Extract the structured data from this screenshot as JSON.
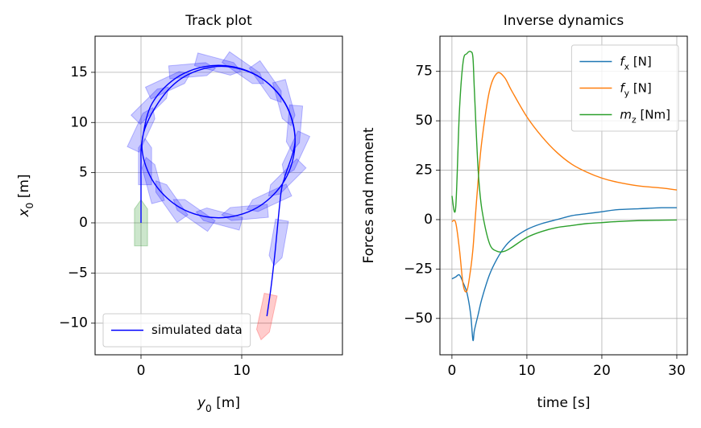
{
  "chart_data": [
    {
      "type": "line",
      "title": "Track plot",
      "xlabel": "y0 [m]",
      "ylabel": "x0 [m]",
      "xlim": [
        -4.56,
        20.0
      ],
      "ylim": [
        -13.15,
        18.6
      ],
      "xticks": [
        0,
        10
      ],
      "yticks": [
        {
          "value": -10,
          "label": "−10"
        },
        {
          "value": -5,
          "label": "−5"
        },
        0,
        5,
        10,
        15
      ],
      "grid": true,
      "legend": "lower left",
      "series": [
        {
          "name": "simulated data",
          "color": "#0000ff",
          "x": [
            0,
            0,
            0,
            0,
            0.1,
            1.1,
            3.9,
            7.7,
            11.5,
            14.3,
            15.3,
            14.3,
            11.5,
            7.7,
            3.9,
            1.1,
            0.1,
            1.7,
            4.35,
            8.0,
            11.65,
            14.3,
            15.3,
            14.3,
            13.9,
            13.3,
            12.9,
            12.5
          ],
          "values": [
            0,
            2,
            4,
            6,
            8.1,
            11.9,
            14.7,
            15.7,
            14.7,
            11.9,
            8.1,
            4.3,
            1.5,
            0.5,
            1.5,
            4.3,
            8.1,
            11.95,
            14.6,
            15.6,
            14.6,
            11.95,
            8.3,
            4.65,
            3.0,
            -3.0,
            -6.5,
            -9.3
          ]
        }
      ],
      "ship_length": 4.6,
      "ship_width": 1.3,
      "ship_outlines": [
        {
          "y0": 0,
          "x0": 0,
          "heading": 0,
          "color": "#008000"
        },
        {
          "y0": 0.4,
          "x0": 6.1,
          "heading": 0,
          "color": "#0000ff"
        },
        {
          "y0": 0.2,
          "x0": 9.4,
          "heading": 25,
          "color": "#0000ff"
        },
        {
          "y0": 1.1,
          "x0": 11.9,
          "heading": 45,
          "color": "#0000ff"
        },
        {
          "y0": 2.8,
          "x0": 13.9,
          "heading": 65,
          "color": "#0000ff"
        },
        {
          "y0": 5.1,
          "x0": 15.2,
          "heading": 85,
          "color": "#0000ff"
        },
        {
          "y0": 7.7,
          "x0": 15.7,
          "heading": 105,
          "color": "#0000ff"
        },
        {
          "y0": 10.3,
          "x0": 15.2,
          "heading": 125,
          "color": "#0000ff"
        },
        {
          "y0": 12.6,
          "x0": 13.9,
          "heading": 145,
          "color": "#0000ff"
        },
        {
          "y0": 14.3,
          "x0": 11.9,
          "heading": 165,
          "color": "#0000ff"
        },
        {
          "y0": 15.2,
          "x0": 9.4,
          "heading": 185,
          "color": "#0000ff"
        },
        {
          "y0": 15.2,
          "x0": 6.8,
          "heading": 205,
          "color": "#0000ff"
        },
        {
          "y0": 14.3,
          "x0": 4.3,
          "heading": 225,
          "color": "#0000ff"
        },
        {
          "y0": 12.6,
          "x0": 2.3,
          "heading": 245,
          "color": "#0000ff"
        },
        {
          "y0": 10.3,
          "x0": 1.0,
          "heading": 265,
          "color": "#0000ff"
        },
        {
          "y0": 7.7,
          "x0": 0.5,
          "heading": 285,
          "color": "#0000ff"
        },
        {
          "y0": 5.1,
          "x0": 1.0,
          "heading": 305,
          "color": "#0000ff"
        },
        {
          "y0": 2.8,
          "x0": 2.3,
          "heading": 325,
          "color": "#0000ff"
        },
        {
          "y0": 1.1,
          "x0": 4.3,
          "heading": 345,
          "color": "#0000ff"
        },
        {
          "y0": 13.6,
          "x0": -2.0,
          "heading": 190,
          "color": "#0000ff"
        },
        {
          "y0": 12.4,
          "x0": -9.4,
          "heading": 192,
          "color": "#ff0000"
        }
      ]
    },
    {
      "type": "line",
      "title": "Inverse dynamics",
      "xlabel": "time [s]",
      "ylabel": "Forces and moment",
      "xlim": [
        -1.6,
        31.4
      ],
      "ylim": [
        -68.4,
        92.8
      ],
      "xticks": [
        0,
        10,
        20,
        30
      ],
      "yticks": [
        {
          "value": -50,
          "label": "−50"
        },
        {
          "value": -25,
          "label": "−25"
        },
        0,
        25,
        50,
        75
      ],
      "grid": true,
      "legend": "upper right",
      "x": [
        0,
        0.5,
        1,
        1.5,
        2,
        2.5,
        2.8,
        3,
        3.5,
        4,
        5,
        6,
        7,
        8,
        10,
        12,
        14,
        16,
        18,
        20,
        22,
        25,
        28,
        30
      ],
      "series": [
        {
          "name": "fx [N]",
          "color": "#1f77b4",
          "values": [
            -30,
            -29,
            -28,
            -32,
            -37,
            -48,
            -61,
            -56,
            -48,
            -40,
            -28,
            -20,
            -14,
            -10,
            -5,
            -2,
            0,
            2,
            3,
            4,
            5,
            5.5,
            6,
            6
          ]
        },
        {
          "name": "fy [N]",
          "color": "#ff7f0e",
          "values": [
            -1,
            -1.5,
            -15,
            -33,
            -36,
            -25,
            -15,
            -5,
            20,
            40,
            65,
            74,
            72,
            65,
            52,
            42,
            34,
            28,
            24,
            21,
            19,
            17,
            16,
            15
          ]
        },
        {
          "name": "mz [Nm]",
          "color": "#2ca02c",
          "values": [
            12,
            6,
            55,
            80,
            84,
            85,
            82,
            65,
            25,
            5,
            -12,
            -16,
            -16,
            -14,
            -9,
            -6,
            -4,
            -3,
            -2,
            -1.5,
            -1,
            -0.5,
            -0.3,
            -0.2
          ]
        }
      ]
    }
  ]
}
